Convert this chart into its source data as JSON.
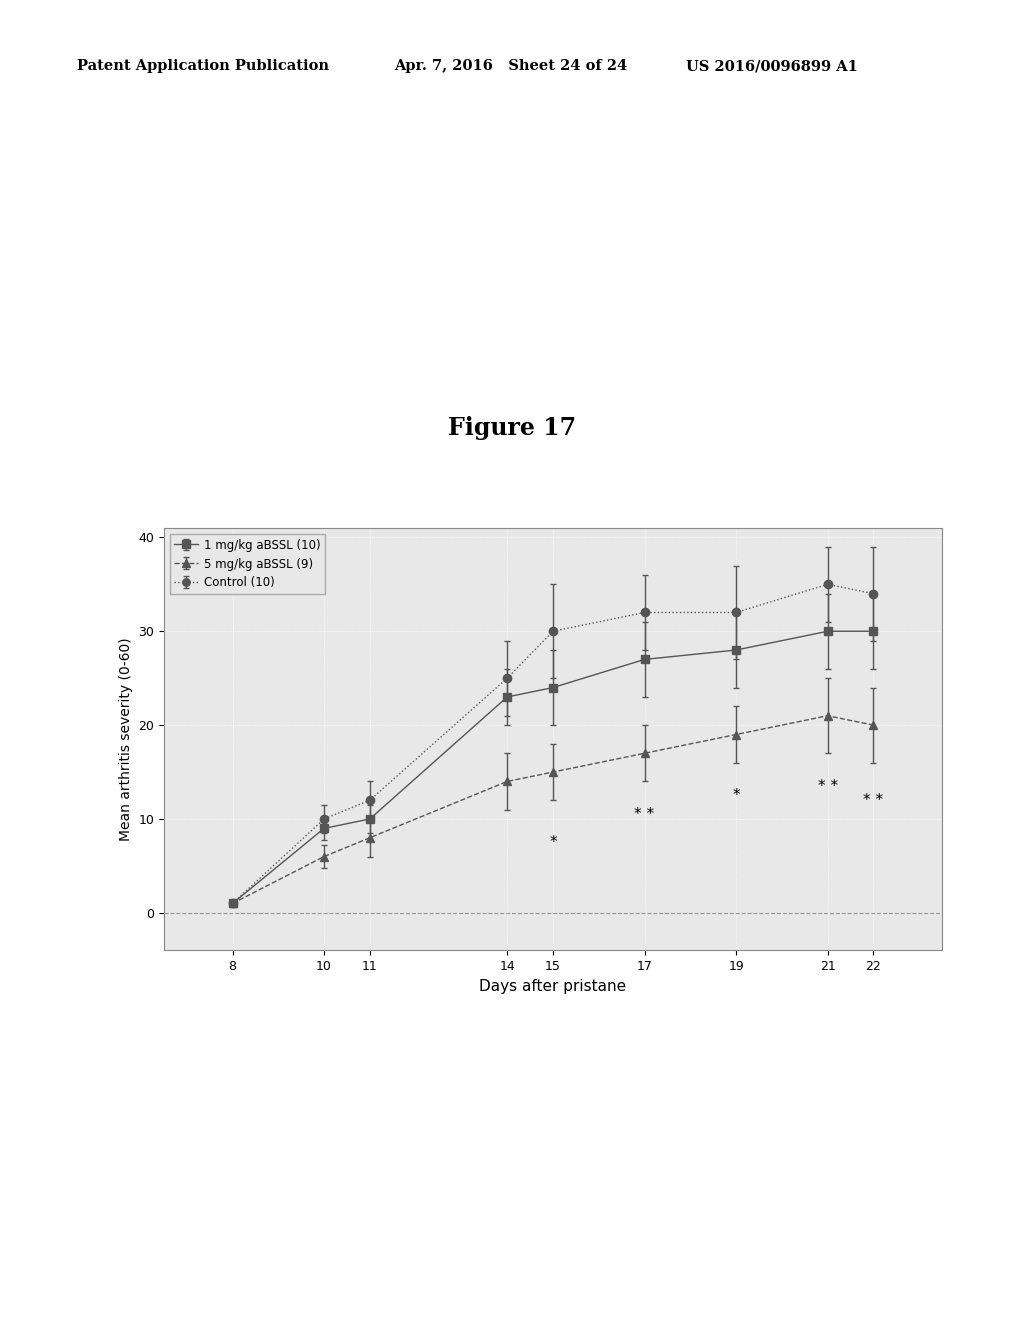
{
  "title": "Figure 17",
  "xlabel": "Days after pristane",
  "ylabel": "Mean arthritis severity (0-60)",
  "header_left": "Patent Application Publication",
  "header_mid": "Apr. 7, 2016   Sheet 24 of 24",
  "header_right": "US 2016/0096899 A1",
  "days": [
    8,
    10,
    11,
    14,
    15,
    17,
    19,
    21,
    22
  ],
  "series1_label": "1 mg/kg aBSSL (10)",
  "series1_y": [
    1,
    9,
    10,
    23,
    24,
    27,
    28,
    30,
    30
  ],
  "series1_err": [
    0.3,
    1.2,
    1.5,
    3,
    4,
    4,
    4,
    4,
    4
  ],
  "series2_label": "5 mg/kg aBSSL (9)",
  "series2_y": [
    1,
    6,
    8,
    14,
    15,
    17,
    19,
    21,
    20
  ],
  "series2_err": [
    0.3,
    1.2,
    2,
    3,
    3,
    3,
    3,
    4,
    4
  ],
  "series3_label": "Control (10)",
  "series3_y": [
    1,
    10,
    12,
    25,
    30,
    32,
    32,
    35,
    34
  ],
  "series3_err": [
    0.3,
    1.5,
    2,
    4,
    5,
    4,
    5,
    4,
    5
  ],
  "ylim": [
    -4,
    41
  ],
  "yticks": [
    0,
    10,
    20,
    30,
    40
  ],
  "xticks": [
    8,
    10,
    11,
    14,
    15,
    17,
    19,
    21,
    22
  ],
  "color": "#555555",
  "bg_color": "#ffffff",
  "plot_bg": "#e8e8e8"
}
